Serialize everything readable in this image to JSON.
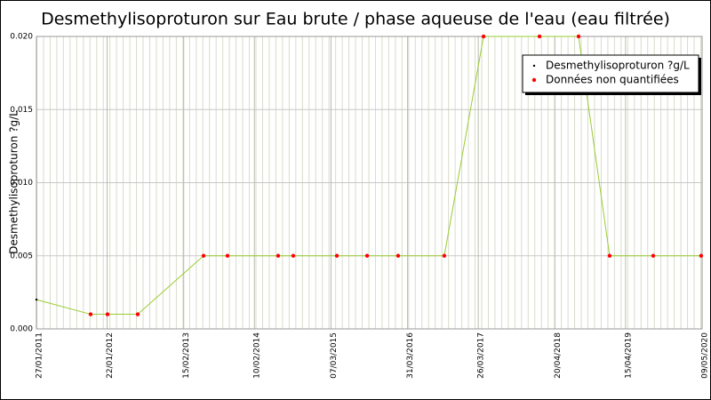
{
  "chart_data": {
    "type": "line",
    "title": "Desmethylisoproturon sur Eau brute / phase aqueuse de l'eau (eau filtrée)",
    "y_label": "Desmethylisoproturon ?g/L",
    "x": [
      "27/01/2011",
      "30/10/2011",
      "24/01/2012",
      "26/06/2012",
      "27/05/2013",
      "26/09/2013",
      "11/06/2014",
      "27/08/2014",
      "06/04/2015",
      "07/09/2015",
      "12/02/2016",
      "04/10/2016",
      "22/04/2017",
      "01/02/2018",
      "19/08/2018",
      "24/01/2019",
      "03/09/2019",
      "04/05/2020"
    ],
    "series": [
      {
        "name": "Desmethylisoproturon ?g/L",
        "color": "#000000",
        "line_color": "#99cc33",
        "values": [
          0.002,
          0.001,
          0.001,
          0.001,
          0.005,
          0.005,
          0.005,
          0.005,
          0.005,
          0.005,
          0.005,
          0.005,
          0.02,
          0.02,
          0.02,
          0.005,
          0.005,
          0.005
        ]
      },
      {
        "name": "Données non quantifiées",
        "color": "#ff0000",
        "values": [
          null,
          0.001,
          0.001,
          0.001,
          0.005,
          0.005,
          0.005,
          0.005,
          0.005,
          0.005,
          0.005,
          0.005,
          0.02,
          0.02,
          0.02,
          0.005,
          0.005,
          0.005
        ]
      }
    ],
    "xlim": [
      "27/01/2011",
      "09/05/2020"
    ],
    "xticks": [
      "27/01/2011",
      "22/01/2012",
      "15/02/2013",
      "10/02/2014",
      "07/03/2015",
      "31/03/2016",
      "26/03/2017",
      "20/04/2018",
      "15/04/2019",
      "09/05/2020"
    ],
    "ylim": [
      0,
      0.02
    ],
    "yticks": [
      {
        "value": 0,
        "label": "0.000"
      },
      {
        "value": 0.005,
        "label": "0.005"
      },
      {
        "value": 0.01,
        "label": "0.010"
      },
      {
        "value": 0.015,
        "label": "0.015"
      },
      {
        "value": 0.02,
        "label": "0.020"
      }
    ],
    "grid": true,
    "legend": "top-right"
  }
}
